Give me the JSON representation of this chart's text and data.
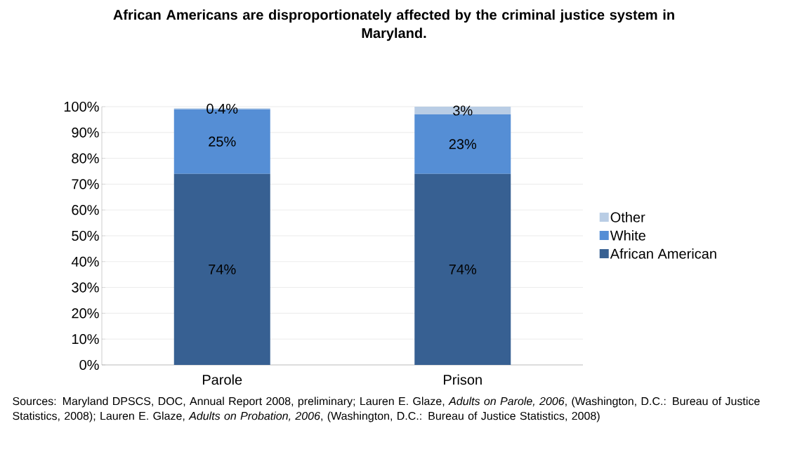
{
  "chart_data": {
    "type": "bar",
    "stacked": true,
    "title": "African Americans are disproportionately affected by the criminal justice system in Maryland.",
    "categories": [
      "Parole",
      "Prison"
    ],
    "series": [
      {
        "name": "African American",
        "color": "#376092",
        "values": [
          74,
          74
        ],
        "value_labels": [
          "74%",
          "74%"
        ]
      },
      {
        "name": "White",
        "color": "#558ed5",
        "values": [
          25,
          23
        ],
        "value_labels": [
          "25%",
          "23%"
        ]
      },
      {
        "name": "Other",
        "color": "#b9cde5",
        "values": [
          0.4,
          3
        ],
        "value_labels": [
          "0.4%",
          "3%"
        ]
      }
    ],
    "ylim": [
      0,
      100
    ],
    "yticks": [
      {
        "value": 0,
        "label": "0%"
      },
      {
        "value": 10,
        "label": "10%"
      },
      {
        "value": 20,
        "label": "20%"
      },
      {
        "value": 30,
        "label": "30%"
      },
      {
        "value": 40,
        "label": "40%"
      },
      {
        "value": 50,
        "label": "50%"
      },
      {
        "value": 60,
        "label": "60%"
      },
      {
        "value": 70,
        "label": "70%"
      },
      {
        "value": 80,
        "label": "80%"
      },
      {
        "value": 90,
        "label": "90%"
      },
      {
        "value": 100,
        "label": "100%"
      }
    ],
    "grid": "y",
    "legend": "right",
    "annotations": [
      "Sources: Maryland DPSCS, DOC, Annual Report 2008, preliminary; Lauren E. Glaze, *Adults on Parole, 2006*, (Washington, D.C.: Bureau of Justice Statistics, 2008); Lauren E. Glaze, *Adults on Probation, 2006*, (Washington, D.C.: Bureau of Justice Statistics, 2008)"
    ]
  }
}
